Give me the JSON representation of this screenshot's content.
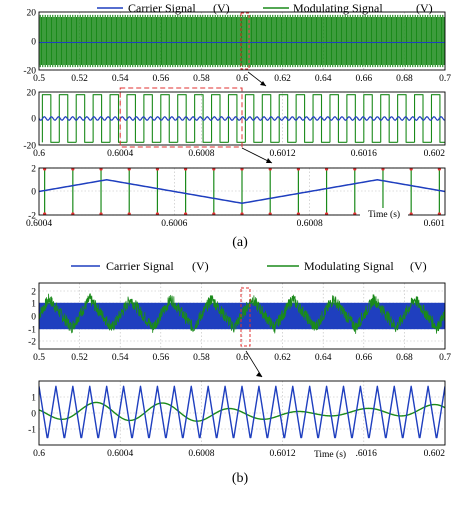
{
  "colors": {
    "carrier": "#1f3fbf",
    "modulating": "#1a8a1a",
    "zoom_box": "#e03030",
    "grid": "#bbbbbb"
  },
  "panel_captions": [
    "(a)",
    "(b)"
  ],
  "legend": {
    "a": [
      {
        "label": "Carrier Signal",
        "unit": "(V)"
      },
      {
        "label": "Modulating Signal",
        "unit": "(V)"
      }
    ],
    "b": [
      {
        "label": "Carrier Signal",
        "unit": "(V)"
      },
      {
        "label": "Modulating Signal",
        "unit": "(V)"
      }
    ]
  },
  "chart_data": [
    {
      "id": "a1",
      "type": "line",
      "x_ticks": [
        "0.5",
        "0.52",
        "0.54",
        "0.56",
        "0.58",
        "0.6",
        "0.62",
        "0.64",
        "0.66",
        "0.68",
        "0.7"
      ],
      "y_ticks": [
        "20",
        "0",
        "-20"
      ],
      "xlim": [
        0.5,
        0.7
      ],
      "ylim": [
        -20,
        20
      ],
      "grid": true,
      "series": [
        {
          "name": "Carrier Signal",
          "unit": "V",
          "amplitude": 1,
          "frequency_hz": 2500
        },
        {
          "name": "Modulating Signal",
          "unit": "V",
          "switching_levels": [
            -18,
            18
          ]
        }
      ],
      "zoom_region": [
        0.6,
        0.602
      ]
    },
    {
      "id": "a2",
      "type": "line",
      "x_ticks": [
        "0.6",
        "0.6004",
        "0.6008",
        "0.6012",
        "0.6016",
        "0.602"
      ],
      "y_ticks": [
        "20",
        "0",
        "-20"
      ],
      "xlim": [
        0.6,
        0.602
      ],
      "ylim": [
        -20,
        20
      ],
      "grid": true,
      "series": [
        {
          "name": "Carrier Signal",
          "unit": "V",
          "amplitude": 1,
          "frequency_hz": 2500
        },
        {
          "name": "Modulating Signal",
          "unit": "V",
          "switching_levels": [
            -18,
            18
          ],
          "switching_frequency_hz": 12000
        }
      ],
      "zoom_region": [
        0.6004,
        0.601
      ]
    },
    {
      "id": "a3",
      "type": "line",
      "x_ticks": [
        "0.6004",
        "0.6006",
        "0.6008",
        "0.601"
      ],
      "y_ticks": [
        "2",
        "0",
        "-2"
      ],
      "xlim": [
        0.6004,
        0.601
      ],
      "ylim": [
        -2,
        2
      ],
      "grid": true,
      "xlabel": "Time (s)",
      "series": [
        {
          "name": "Carrier Signal",
          "unit": "V",
          "amplitude": 1,
          "frequency_hz": 2500
        },
        {
          "name": "Modulating Signal",
          "unit": "V",
          "switching_levels": [
            -18,
            18
          ],
          "switching_frequency_hz": 12000
        }
      ]
    },
    {
      "id": "b1",
      "type": "line",
      "x_ticks": [
        "0.5",
        "0.52",
        "0.54",
        "0.56",
        "0.58",
        "0.6",
        "0.62",
        "0.64",
        "0.66",
        "0.68",
        "0.7"
      ],
      "y_ticks": [
        "2",
        "1",
        "0",
        "-1",
        "-2"
      ],
      "xlim": [
        0.5,
        0.7
      ],
      "ylim": [
        -2.5,
        2.5
      ],
      "grid": true,
      "series": [
        {
          "name": "Carrier Signal",
          "unit": "V",
          "amplitude": 1,
          "frequency_hz": 5000
        },
        {
          "name": "Modulating Signal",
          "unit": "V",
          "amplitude": 1.5,
          "fundamental_hz": 50
        }
      ],
      "zoom_region": [
        0.6,
        0.602
      ]
    },
    {
      "id": "b2",
      "type": "line",
      "x_ticks": [
        "0.6",
        "0.6004",
        "0.6008",
        "0.6012",
        "0.6016",
        "0.602"
      ],
      "y_ticks": [
        "1",
        "0",
        "-1"
      ],
      "xlim": [
        0.6,
        0.602
      ],
      "ylim": [
        -1.2,
        1.2
      ],
      "grid": true,
      "xlabel": "Time (s)",
      "series": [
        {
          "name": "Carrier Signal",
          "unit": "V",
          "amplitude": 1,
          "frequency_hz": 12000
        },
        {
          "name": "Modulating Signal",
          "unit": "V",
          "amplitude": 0.5
        }
      ]
    }
  ]
}
